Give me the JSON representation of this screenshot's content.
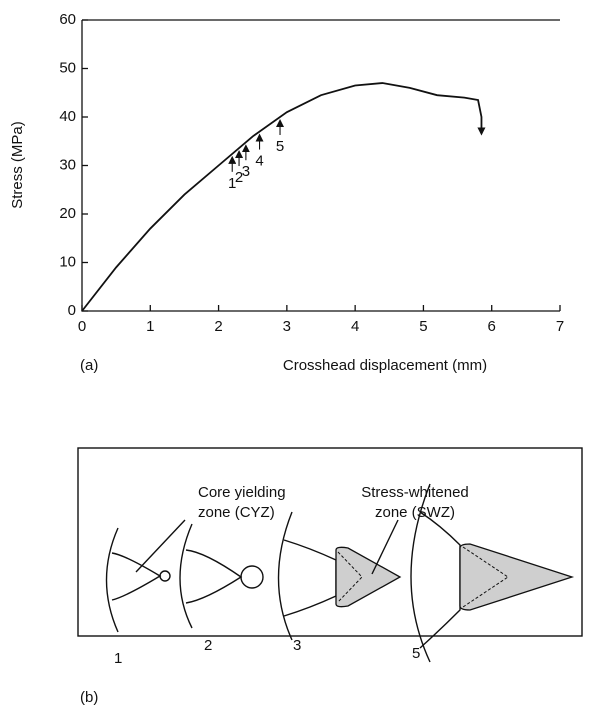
{
  "chart_data": {
    "type": "line",
    "panel_label": "(a)",
    "x_label": "Crosshead displacement (mm)",
    "y_label": "Stress (MPa)",
    "x": [
      0,
      0.5,
      1,
      1.5,
      2,
      2.5,
      3,
      3.5,
      4,
      4.4,
      4.8,
      5.2,
      5.6,
      5.8,
      5.85,
      5.85
    ],
    "series": [
      {
        "name": null,
        "color": "#111111",
        "values": [
          0,
          9,
          17,
          24,
          30,
          36,
          41,
          44.5,
          46.5,
          47,
          46,
          44.5,
          44,
          43.5,
          40,
          37
        ]
      }
    ],
    "xlim": [
      0,
      7
    ],
    "xticks": [
      0,
      1,
      2,
      3,
      4,
      5,
      6,
      7
    ],
    "ylim": [
      0,
      60
    ],
    "yticks": [
      0,
      10,
      20,
      30,
      40,
      50,
      60
    ],
    "markers": [
      {
        "label": "1",
        "x": 2.2
      },
      {
        "label": "2",
        "x": 2.3
      },
      {
        "label": "3",
        "x": 2.4
      },
      {
        "label": "4",
        "x": 2.6
      },
      {
        "label": "5",
        "x": 2.9
      }
    ]
  },
  "diagram": {
    "panel_label": "(b)",
    "cyz_label": [
      "Core yielding",
      "zone (CYZ)"
    ],
    "swz_label": [
      "Stress-whitened",
      "zone (SWZ)"
    ],
    "stages": [
      "1",
      "2",
      "3",
      "5"
    ]
  }
}
